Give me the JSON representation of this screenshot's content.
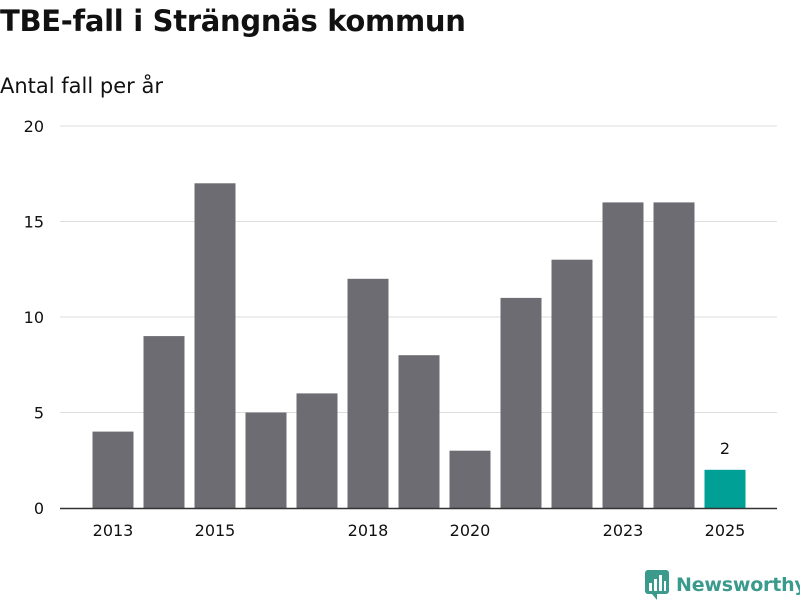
{
  "header": {
    "title": "TBE-fall i Strängnäs kommun",
    "subtitle": "Antal fall per år"
  },
  "brand": {
    "name": "Newsworthy",
    "color": "#3a9a8c"
  },
  "chart_data": {
    "type": "bar",
    "categories": [
      "2013",
      "2014",
      "2015",
      "2016",
      "2017",
      "2018",
      "2019",
      "2020",
      "2021",
      "2022",
      "2023",
      "2024",
      "2025"
    ],
    "values": [
      4,
      9,
      17,
      5,
      6,
      12,
      8,
      3,
      11,
      13,
      16,
      16,
      2
    ],
    "x_tick_labels": [
      "2013",
      "",
      "2015",
      "",
      "",
      "2018",
      "",
      "2020",
      "",
      "",
      "2023",
      "",
      "2025"
    ],
    "y_ticks": [
      "0",
      "5",
      "10",
      "15",
      "20"
    ],
    "ylim": [
      0,
      20
    ],
    "grid": true,
    "colors": {
      "bar": "#6d6c72",
      "highlight": "#00a096",
      "grid": "#dddddd"
    },
    "highlight_index": 12,
    "data_labels": [
      {
        "index": 12,
        "text": "2"
      }
    ]
  }
}
